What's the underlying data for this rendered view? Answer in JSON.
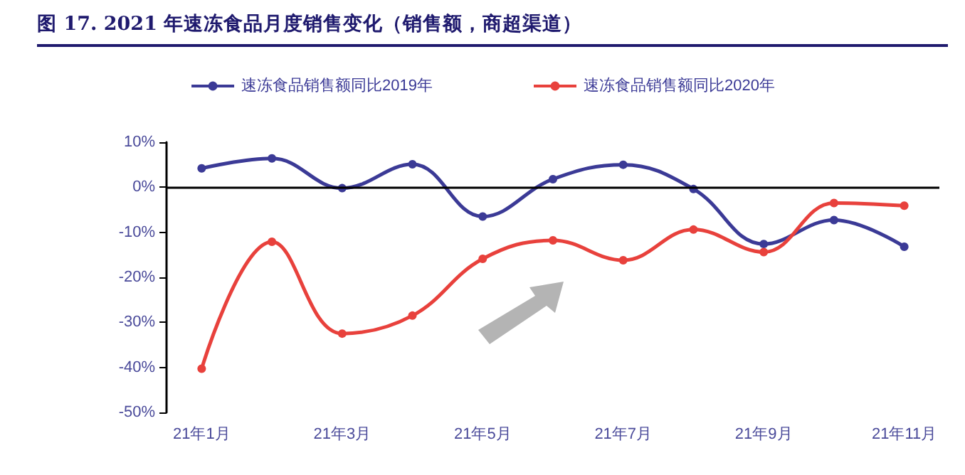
{
  "chart_data": {
    "type": "line",
    "title": "图 17. 2021 年速冻食品月度销售变化（销售额，商超渠道）",
    "categories": [
      "21年1月",
      null,
      "21年3月",
      null,
      "21年5月",
      null,
      "21年7月",
      null,
      "21年9月",
      null,
      "21年11月"
    ],
    "series": [
      {
        "name": "速冻食品销售额同比2019年",
        "color": "#3b3a96",
        "values": [
          4.2,
          6.4,
          -0.2,
          5.1,
          -6.5,
          1.8,
          5.0,
          -0.4,
          -12.6,
          -7.3,
          -13.2
        ]
      },
      {
        "name": "速冻食品销售额同比2020年",
        "color": "#e8413c",
        "values": [
          -40.3,
          -12.1,
          -32.5,
          -28.5,
          -15.9,
          -11.8,
          -16.2,
          -9.4,
          -14.4,
          -3.5,
          -4.1
        ]
      }
    ],
    "ylim": [
      -50,
      10
    ],
    "yticks": [
      {
        "value": 10,
        "label": "10%"
      },
      {
        "value": 0,
        "label": "0%"
      },
      {
        "value": -10,
        "label": "-10%"
      },
      {
        "value": -20,
        "label": "-20%"
      },
      {
        "value": -30,
        "label": "-30%"
      },
      {
        "value": -40,
        "label": "-40%"
      },
      {
        "value": -50,
        "label": "-50%"
      }
    ],
    "ref_lines": [
      {
        "axis": "y",
        "value": 0,
        "color": "#000000"
      }
    ],
    "legend": "top",
    "grid": false,
    "marker": "circle",
    "line_style": "solid"
  }
}
